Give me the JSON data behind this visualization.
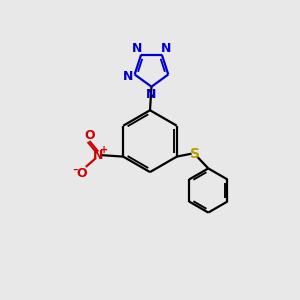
{
  "bg_color": "#e8e8e8",
  "bond_color": "#000000",
  "nitrogen_color": "#0000cc",
  "oxygen_color": "#cc0000",
  "sulfur_color": "#b8a000",
  "line_width": 1.6,
  "figsize": [
    3.0,
    3.0
  ],
  "dpi": 100,
  "xlim": [
    0,
    10
  ],
  "ylim": [
    0,
    10
  ]
}
